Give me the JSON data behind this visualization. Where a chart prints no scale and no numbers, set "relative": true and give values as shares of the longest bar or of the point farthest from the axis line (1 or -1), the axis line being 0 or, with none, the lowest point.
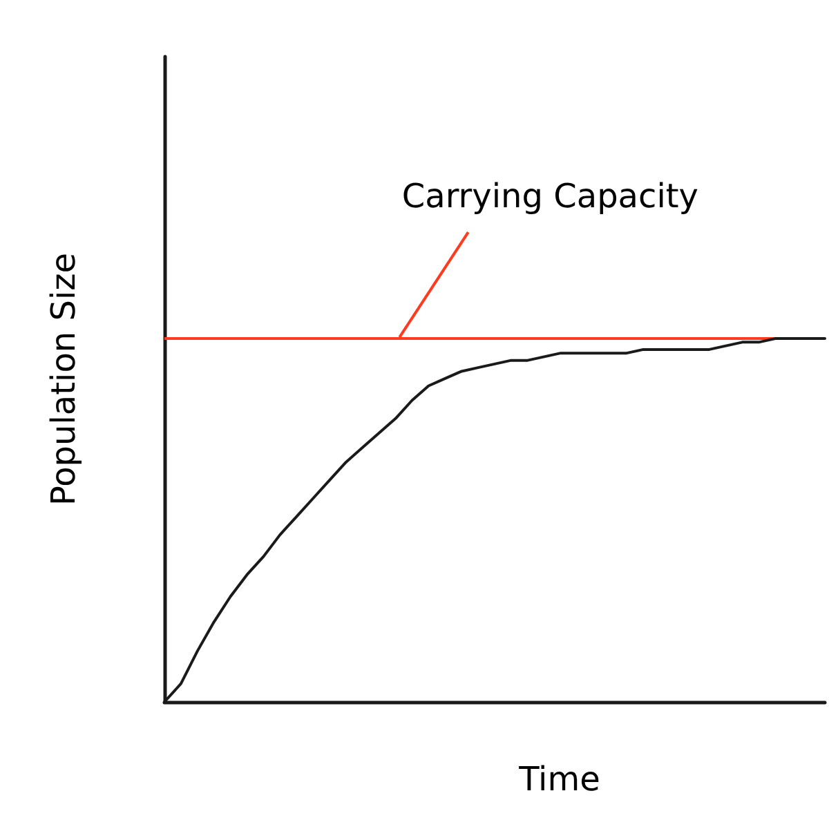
{
  "chart_data": {
    "type": "line",
    "xlabel": "Time",
    "ylabel": "Population Size",
    "relative": true,
    "marker": "none",
    "line_style": "solid",
    "grid": false,
    "categories": [
      null,
      null,
      null,
      null,
      null,
      null,
      null,
      null,
      null,
      null,
      null,
      null,
      null,
      null,
      null,
      null,
      null,
      null,
      null,
      null,
      null,
      null,
      null,
      null,
      null,
      null,
      null,
      null,
      null,
      null,
      null,
      null,
      null,
      null,
      null,
      null,
      null,
      null,
      null,
      null,
      null
    ],
    "series": [
      {
        "color": "#1a1a1a",
        "values": [
          0,
          0.05,
          0.14,
          0.22,
          0.29,
          0.35,
          0.4,
          0.46,
          0.51,
          0.56,
          0.61,
          0.66,
          0.7,
          0.74,
          0.78,
          0.83,
          0.87,
          0.89,
          0.91,
          0.92,
          0.93,
          0.94,
          0.94,
          0.95,
          0.96,
          0.96,
          0.96,
          0.96,
          0.96,
          0.97,
          0.97,
          0.97,
          0.97,
          0.97,
          0.98,
          0.99,
          0.99,
          1,
          1,
          1,
          1
        ]
      }
    ],
    "ref_lines": [
      {
        "axis": "y",
        "value": 1,
        "label": "Carrying Capacity",
        "color": "#ff3b1f"
      }
    ]
  }
}
